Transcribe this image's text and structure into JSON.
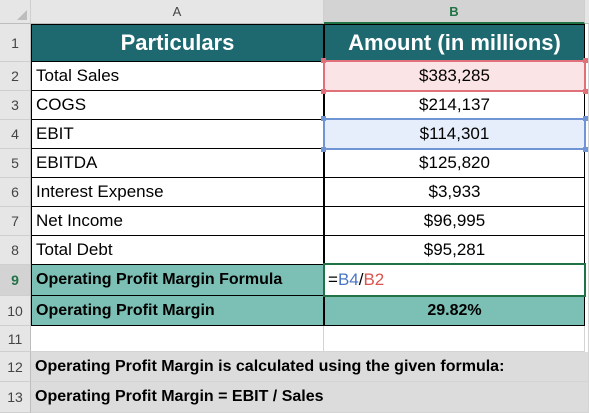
{
  "columns": [
    "A",
    "B"
  ],
  "rows": [
    "1",
    "2",
    "3",
    "4",
    "5",
    "6",
    "7",
    "8",
    "9",
    "10",
    "11",
    "12",
    "13"
  ],
  "header": {
    "particulars": "Particulars",
    "amount": "Amount (in millions)"
  },
  "items": [
    {
      "label": "Total Sales",
      "value": "$383,285"
    },
    {
      "label": "COGS",
      "value": "$214,137"
    },
    {
      "label": "EBIT",
      "value": "$114,301"
    },
    {
      "label": "EBITDA",
      "value": "$125,820"
    },
    {
      "label": "Interest Expense",
      "value": "$3,933"
    },
    {
      "label": "Net Income",
      "value": "$96,995"
    },
    {
      "label": "Total Debt",
      "value": "$95,281"
    }
  ],
  "formula_row": {
    "label": "Operating Profit Margin Formula",
    "formula_eq": "=",
    "formula_ref1": "B4",
    "formula_op": "/",
    "formula_ref2": "B2"
  },
  "result_row": {
    "label": "Operating Profit Margin",
    "value": "29.82%"
  },
  "notes": [
    "Operating Profit Margin is calculated using the given formula:",
    "Operating Profit Margin = EBIT / Sales"
  ],
  "colors": {
    "header_fill": "#1e6870",
    "highlight_fill": "#7bbfb5",
    "note_fill": "#dcdcdc",
    "ref1_color": "#4a75c4",
    "ref2_color": "#d9534f",
    "active_border": "#217346"
  }
}
